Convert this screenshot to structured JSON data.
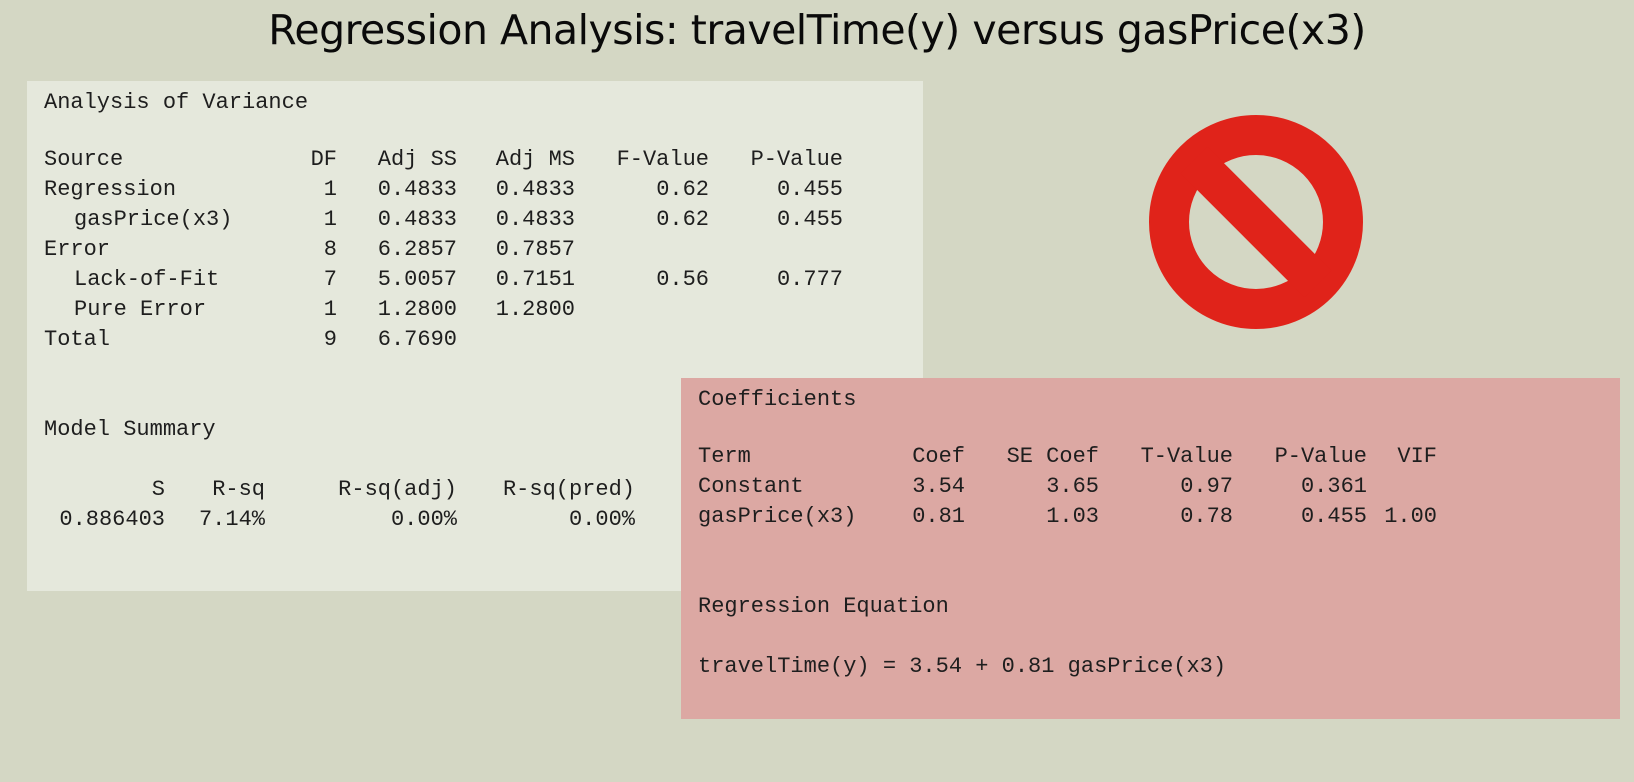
{
  "title": "Regression Analysis: travelTime(y) versus gasPrice(x3)",
  "colors": {
    "background": "#d4d7c4",
    "anova_panel": "#e5e8dc",
    "coef_panel": "#dca8a3",
    "prohibit_red": "#e0231a"
  },
  "icon": "prohibition-sign-icon",
  "anova": {
    "heading": "Analysis of Variance",
    "columns": [
      "Source",
      "DF",
      "Adj SS",
      "Adj MS",
      "F-Value",
      "P-Value"
    ],
    "rows": [
      {
        "source": "Regression",
        "df": "1",
        "adj_ss": "0.4833",
        "adj_ms": "0.4833",
        "f": "0.62",
        "p": "0.455"
      },
      {
        "source": "gasPrice(x3)",
        "df": "1",
        "adj_ss": "0.4833",
        "adj_ms": "0.4833",
        "f": "0.62",
        "p": "0.455"
      },
      {
        "source": "Error",
        "df": "8",
        "adj_ss": "6.2857",
        "adj_ms": "0.7857",
        "f": "",
        "p": ""
      },
      {
        "source": "Lack-of-Fit",
        "df": "7",
        "adj_ss": "5.0057",
        "adj_ms": "0.7151",
        "f": "0.56",
        "p": "0.777"
      },
      {
        "source": "Pure Error",
        "df": "1",
        "adj_ss": "1.2800",
        "adj_ms": "1.2800",
        "f": "",
        "p": ""
      },
      {
        "source": "Total",
        "df": "9",
        "adj_ss": "6.7690",
        "adj_ms": "",
        "f": "",
        "p": ""
      }
    ]
  },
  "model_summary": {
    "heading": "Model Summary",
    "columns": [
      "S",
      "R-sq",
      "R-sq(adj)",
      "R-sq(pred)"
    ],
    "values": [
      "0.886403",
      "7.14%",
      "0.00%",
      "0.00%"
    ]
  },
  "coefficients": {
    "heading": "Coefficients",
    "columns": [
      "Term",
      "Coef",
      "SE Coef",
      "T-Value",
      "P-Value",
      "VIF"
    ],
    "rows": [
      {
        "term": "Constant",
        "coef": "3.54",
        "se": "3.65",
        "t": "0.97",
        "p": "0.361",
        "vif": ""
      },
      {
        "term": "gasPrice(x3)",
        "coef": "0.81",
        "se": "1.03",
        "t": "0.78",
        "p": "0.455",
        "vif": "1.00"
      }
    ]
  },
  "equation": {
    "heading": "Regression Equation",
    "text": "travelTime(y) = 3.54 + 0.81 gasPrice(x3)"
  }
}
